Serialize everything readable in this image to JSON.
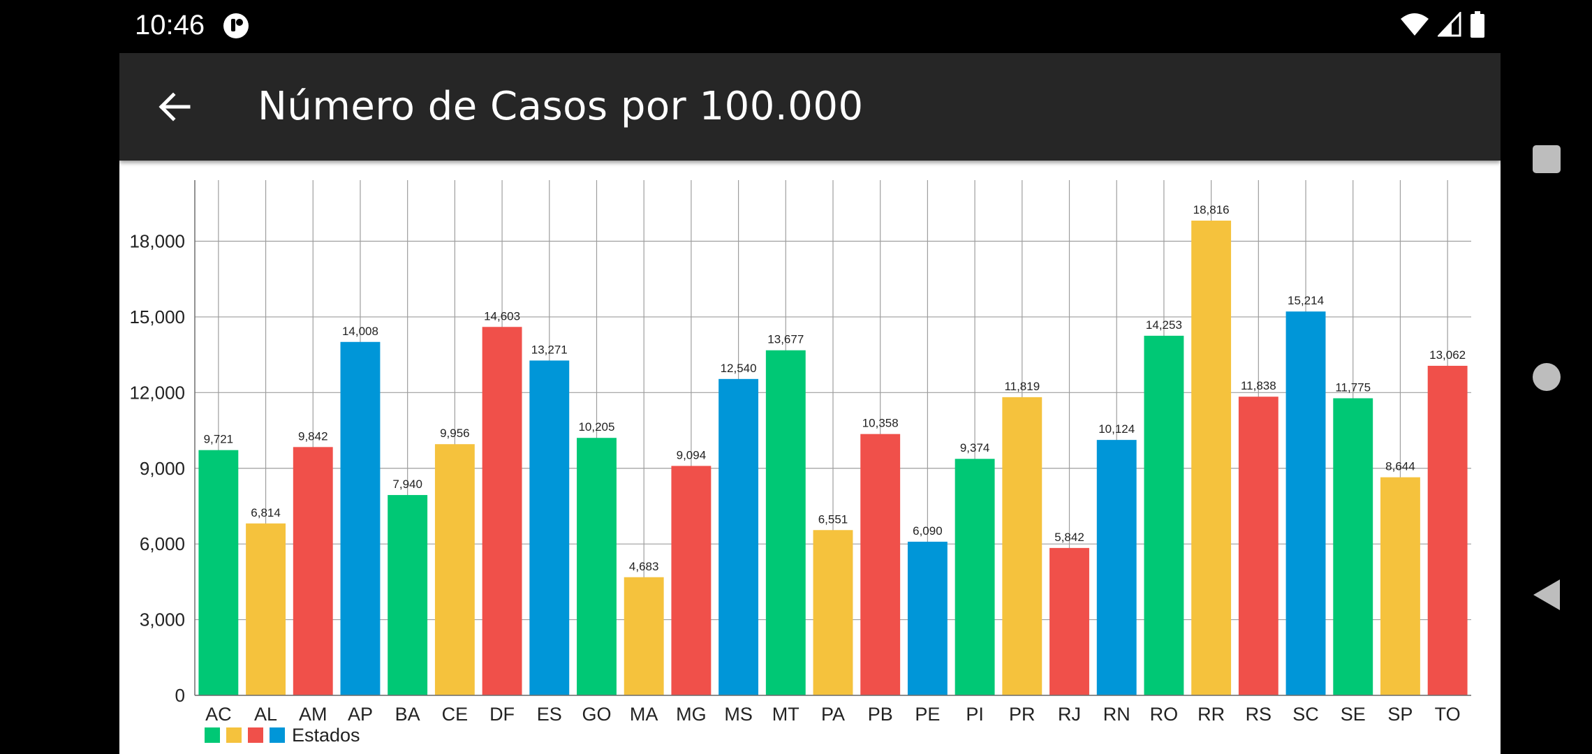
{
  "status_bar": {
    "time": "10:46",
    "app_icon": "app-notification-icon",
    "icons": [
      "wifi-icon",
      "cell-signal-icon",
      "battery-icon"
    ]
  },
  "toolbar": {
    "back_icon": "arrow-left-icon",
    "title": "Número de Casos por 100.000"
  },
  "nav_bar": {
    "icons": [
      "recents-square-icon",
      "home-circle-icon",
      "back-triangle-icon"
    ]
  },
  "colors": {
    "toolbar": "#262626",
    "green": "#00C875",
    "yellow": "#F5C23D",
    "red": "#F0504A",
    "blue": "#0096D8"
  },
  "chart_data": {
    "type": "bar",
    "categories": [
      "AC",
      "AL",
      "AM",
      "AP",
      "BA",
      "CE",
      "DF",
      "ES",
      "GO",
      "MA",
      "MG",
      "MS",
      "MT",
      "PA",
      "PB",
      "PE",
      "PI",
      "PR",
      "RJ",
      "RN",
      "RO",
      "RR",
      "RS",
      "SC",
      "SE",
      "SP",
      "TO"
    ],
    "values": [
      9721,
      6814,
      9842,
      14008,
      7940,
      9956,
      14603,
      13271,
      10205,
      4683,
      9094,
      12540,
      13677,
      6551,
      10358,
      6090,
      9374,
      11819,
      5842,
      10124,
      14253,
      18816,
      11838,
      15214,
      11775,
      8644,
      13062
    ],
    "value_labels": [
      "9,721",
      "6,814",
      "9,842",
      "14,008",
      "7,940",
      "9,956",
      "14,603",
      "13,271",
      "10,205",
      "4,683",
      "9,094",
      "12,540",
      "13,677",
      "6,551",
      "10,358",
      "6,090",
      "9,374",
      "11,819",
      "5,842",
      "10,124",
      "14,253",
      "18,816",
      "11,838",
      "15,214",
      "11,775",
      "8,644",
      "13,062"
    ],
    "bar_colors": [
      "#00C875",
      "#F5C23D",
      "#F0504A",
      "#0096D8"
    ],
    "y_ticks": [
      0,
      3000,
      6000,
      9000,
      12000,
      15000,
      18000
    ],
    "y_tick_labels": [
      "0",
      "3,000",
      "6,000",
      "9,000",
      "12,000",
      "15,000",
      "18,000"
    ],
    "ylim": [
      0,
      20200
    ],
    "grid": true,
    "legend": {
      "placement": "bottom-left",
      "label": "Estados",
      "colors": [
        "#00C875",
        "#F5C23D",
        "#F0504A",
        "#0096D8"
      ]
    }
  }
}
